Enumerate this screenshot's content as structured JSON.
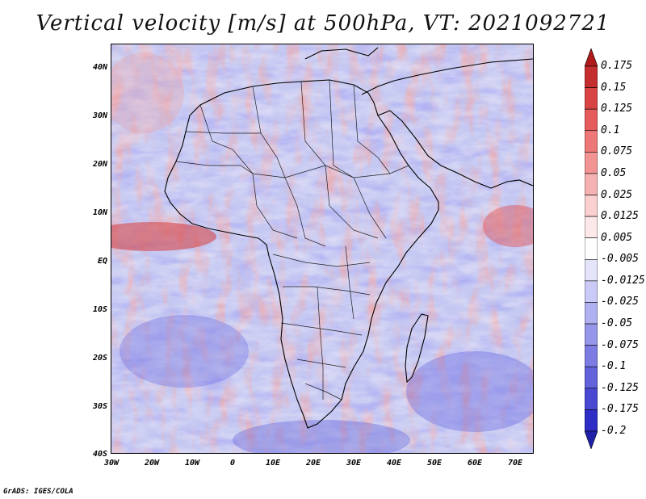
{
  "title": "Vertical velocity [m/s] at 500hPa, VT: 2021092721",
  "credit": "GrADS: IGES/COLA",
  "lat_labels": [
    "40N",
    "30N",
    "20N",
    "10N",
    "EQ",
    "10S",
    "20S",
    "30S",
    "40S"
  ],
  "lon_labels": [
    "30W",
    "20W",
    "10W",
    "0",
    "10E",
    "20E",
    "30E",
    "40E",
    "50E",
    "60E",
    "70E"
  ],
  "colorbar": {
    "labels": [
      "0.175",
      "0.15",
      "0.125",
      "0.1",
      "0.075",
      "0.05",
      "0.025",
      "0.0125",
      "0.005",
      "-0.005",
      "-0.0125",
      "-0.025",
      "-0.05",
      "-0.075",
      "-0.1",
      "-0.125",
      "-0.175",
      "-0.2"
    ],
    "colors": [
      "#b01a1a",
      "#c42e2e",
      "#d84444",
      "#e65c5c",
      "#ee7878",
      "#f29494",
      "#f6b2b2",
      "#f9cfcf",
      "#fce8e8",
      "#ffffff",
      "#e4e4fb",
      "#cacaf6",
      "#b0b0f0",
      "#9696ea",
      "#7c7ce2",
      "#6262da",
      "#4848d2",
      "#2e2ec6",
      "#2020a8"
    ]
  },
  "field": {
    "description_colors": {
      "positive": "#e88080",
      "negative": "#8c8ce8",
      "neutral": "#f4f4ff"
    }
  }
}
